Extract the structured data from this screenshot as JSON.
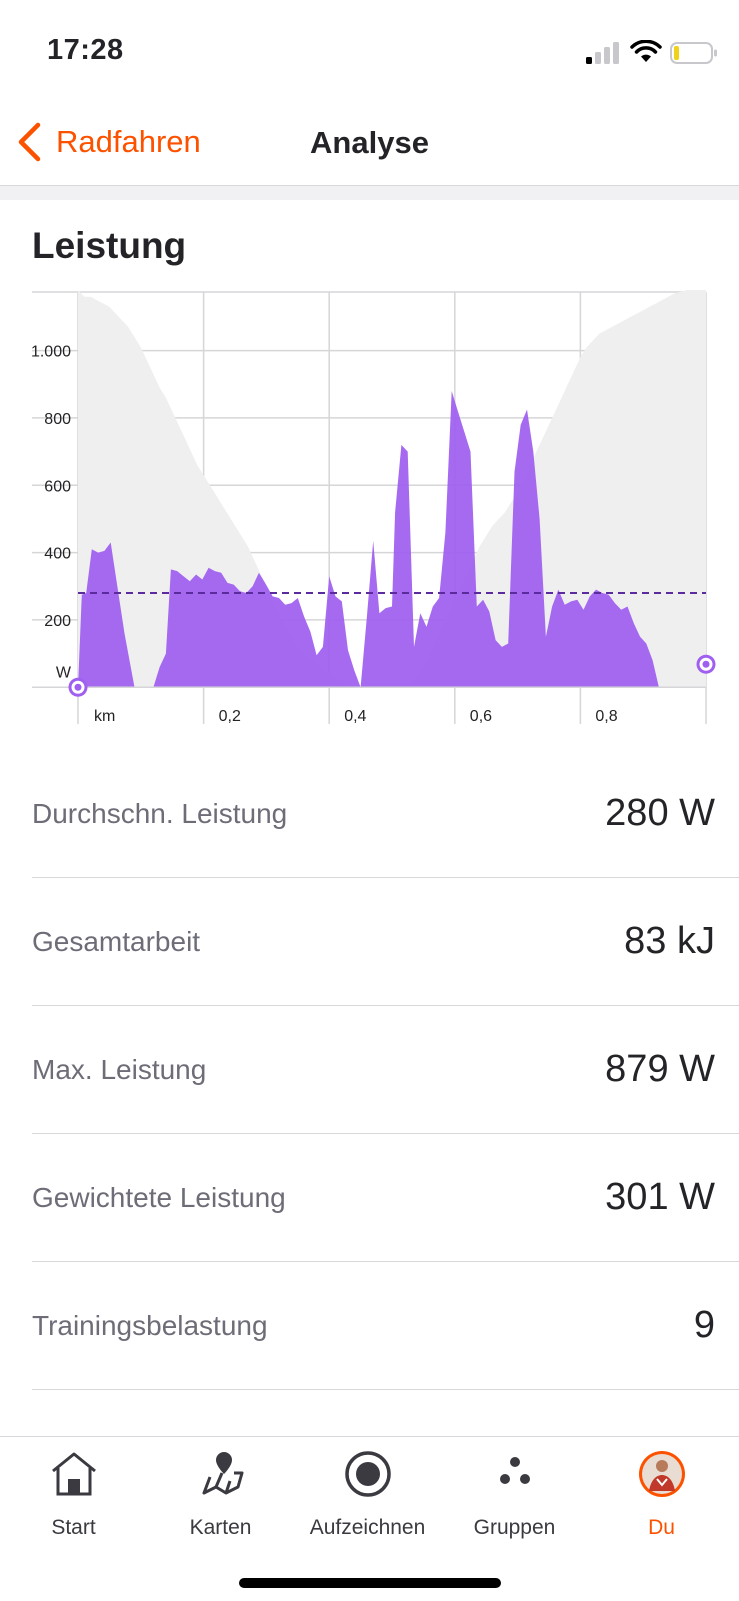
{
  "status_bar": {
    "time": "17:28"
  },
  "nav": {
    "back_label": "Radfahren",
    "title": "Analyse"
  },
  "section": {
    "title": "Leistung"
  },
  "chart_data": {
    "type": "area",
    "x_unit": "km",
    "y_unit": "W",
    "xlim": [
      0,
      1.0
    ],
    "ylim": [
      -20,
      1180
    ],
    "x_ticks": [
      {
        "value": 0.2,
        "label": "0,2"
      },
      {
        "value": 0.4,
        "label": "0,4"
      },
      {
        "value": 0.6,
        "label": "0,6"
      },
      {
        "value": 0.8,
        "label": "0,8"
      }
    ],
    "y_ticks": [
      {
        "value": 200,
        "label": "200"
      },
      {
        "value": 400,
        "label": "400"
      },
      {
        "value": 600,
        "label": "600"
      },
      {
        "value": 800,
        "label": "800"
      },
      {
        "value": 1000,
        "label": "1.000"
      }
    ],
    "average_line": 280,
    "colors": {
      "power": "#9f5ff0",
      "elevation": "#efeff0",
      "average": "#5b2b9e",
      "grid": "#d6d6d8"
    },
    "series": [
      {
        "type": "area",
        "x": [
          0,
          0.01,
          0.02,
          0.03,
          0.04,
          0.05,
          0.06,
          0.07,
          0.08,
          0.09,
          0.1,
          0.11,
          0.12,
          0.13,
          0.14,
          0.15,
          0.16,
          0.17,
          0.18,
          0.19,
          0.2,
          0.21,
          0.22,
          0.23,
          0.24,
          0.25,
          0.26,
          0.27,
          0.28,
          0.29,
          0.3,
          0.31,
          0.32,
          0.33,
          0.34,
          0.35,
          0.36,
          0.37,
          0.38,
          0.39,
          0.4,
          0.41,
          0.42,
          0.43,
          0.44,
          0.45,
          0.46,
          0.47,
          0.48,
          0.49,
          0.5,
          0.51,
          0.52,
          0.53,
          0.54,
          0.55,
          0.56,
          0.57,
          0.58,
          0.59,
          0.6,
          0.61,
          0.62,
          0.63,
          0.64,
          0.65,
          0.66,
          0.67,
          0.68,
          0.69,
          0.7,
          0.71,
          0.72,
          0.73,
          0.74,
          0.75,
          0.76,
          0.77,
          0.78,
          0.79,
          0.8,
          0.81,
          0.82,
          0.83,
          0.84,
          0.85,
          0.86,
          0.87,
          0.88,
          0.89,
          0.9,
          0.91,
          0.92,
          0.93,
          0.94,
          0.95,
          0.96,
          0.97,
          0.98,
          0.99,
          1.0
        ],
        "y": [
          1180,
          1160,
          1160,
          1150,
          1140,
          1130,
          1110,
          1090,
          1070,
          1040,
          1010,
          970,
          930,
          890,
          860,
          820,
          780,
          740,
          700,
          660,
          630,
          600,
          570,
          540,
          510,
          480,
          450,
          420,
          380,
          340,
          300,
          260,
          220,
          180,
          150,
          120,
          100,
          85,
          70,
          55,
          40,
          30,
          20,
          12,
          5,
          0,
          0,
          0,
          0,
          0,
          0,
          0,
          5,
          10,
          30,
          60,
          100,
          140,
          180,
          220,
          260,
          300,
          340,
          380,
          420,
          450,
          480,
          500,
          520,
          550,
          580,
          620,
          660,
          700,
          740,
          780,
          820,
          860,
          900,
          940,
          980,
          1010,
          1030,
          1050,
          1060,
          1070,
          1080,
          1090,
          1100,
          1110,
          1120,
          1130,
          1140,
          1150,
          1160,
          1170,
          1175,
          1180,
          1180,
          1180,
          1180
        ]
      },
      {
        "type": "area",
        "x": [
          0,
          0.006,
          0.013,
          0.022,
          0.032,
          0.042,
          0.052,
          0.061,
          0.074,
          0.09,
          0.105,
          0.12,
          0.13,
          0.14,
          0.148,
          0.158,
          0.168,
          0.178,
          0.188,
          0.198,
          0.208,
          0.218,
          0.228,
          0.238,
          0.248,
          0.258,
          0.268,
          0.278,
          0.288,
          0.298,
          0.31,
          0.32,
          0.33,
          0.34,
          0.35,
          0.36,
          0.37,
          0.38,
          0.39,
          0.4,
          0.41,
          0.42,
          0.43,
          0.44,
          0.45,
          0.46,
          0.47,
          0.48,
          0.49,
          0.5,
          0.505,
          0.515,
          0.525,
          0.535,
          0.545,
          0.555,
          0.565,
          0.575,
          0.585,
          0.595,
          0.605,
          0.615,
          0.625,
          0.635,
          0.645,
          0.655,
          0.665,
          0.675,
          0.685,
          0.695,
          0.705,
          0.715,
          0.725,
          0.735,
          0.745,
          0.755,
          0.765,
          0.775,
          0.785,
          0.795,
          0.805,
          0.815,
          0.825,
          0.835,
          0.845,
          0.855,
          0.865,
          0.875,
          0.885,
          0.895,
          0.905,
          0.915,
          0.925,
          0.935,
          0.945,
          0.955,
          0.965,
          0.975,
          0.985,
          0.992,
          1.0
        ],
        "y": [
          0,
          275,
          280,
          410,
          400,
          405,
          430,
          320,
          160,
          0,
          0,
          0,
          60,
          100,
          350,
          345,
          330,
          315,
          335,
          320,
          355,
          345,
          340,
          310,
          305,
          285,
          280,
          300,
          340,
          310,
          270,
          265,
          245,
          250,
          265,
          210,
          165,
          95,
          120,
          330,
          270,
          255,
          110,
          50,
          0,
          210,
          435,
          220,
          235,
          240,
          520,
          720,
          700,
          120,
          220,
          180,
          240,
          265,
          460,
          880,
          820,
          760,
          700,
          240,
          260,
          225,
          140,
          120,
          130,
          640,
          780,
          825,
          700,
          500,
          150,
          240,
          290,
          245,
          255,
          260,
          230,
          270,
          290,
          280,
          275,
          250,
          230,
          240,
          190,
          150,
          130,
          80,
          0,
          0,
          0,
          0,
          0,
          0,
          0,
          0,
          0
        ]
      }
    ]
  },
  "stats": [
    {
      "label": "Durchschn. Leistung",
      "value": "280 W"
    },
    {
      "label": "Gesamtarbeit",
      "value": "83 kJ"
    },
    {
      "label": "Max. Leistung",
      "value": "879 W"
    },
    {
      "label": "Gewichtete Leistung",
      "value": "301 W"
    },
    {
      "label": "Trainingsbelastung",
      "value": "9"
    }
  ],
  "tabs": [
    {
      "label": "Start",
      "icon": "home-icon"
    },
    {
      "label": "Karten",
      "icon": "map-icon"
    },
    {
      "label": "Aufzeichnen",
      "icon": "record-icon"
    },
    {
      "label": "Gruppen",
      "icon": "groups-icon"
    },
    {
      "label": "Du",
      "icon": "profile-avatar-icon",
      "active": true
    }
  ]
}
